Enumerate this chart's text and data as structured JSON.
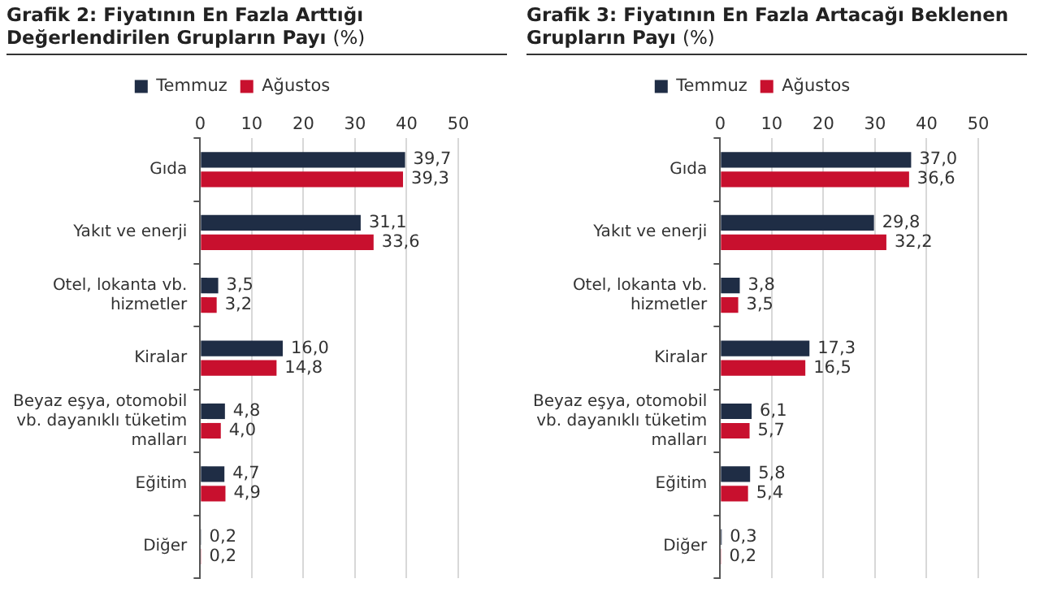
{
  "chart_data": [
    {
      "type": "bar",
      "orientation": "horizontal",
      "title": "Grafik 2: Fiyatının En Fazla Arttığı Değerlendirilen Grupların Payı",
      "subtitle": "(%)",
      "categories": [
        "Gıda",
        "Yakıt ve enerji",
        "Otel, lokanta vb. hizmetler",
        "Kiralar",
        "Beyaz eşya, otomobil vb. dayanıklı tüketim malları",
        "Eğitim",
        "Diğer"
      ],
      "series": [
        {
          "name": "Temmuz",
          "color": "#1f2d45",
          "values": [
            39.7,
            31.1,
            3.5,
            16.0,
            4.8,
            4.7,
            0.2
          ],
          "value_labels": [
            "39,7",
            "31,1",
            "3,5",
            "16,0",
            "4,8",
            "4,7",
            "0,2"
          ]
        },
        {
          "name": "Ağustos",
          "color": "#c8102e",
          "values": [
            39.3,
            33.6,
            3.2,
            14.8,
            4.0,
            4.9,
            0.2
          ],
          "value_labels": [
            "39,3",
            "33,6",
            "3,2",
            "14,8",
            "4,0",
            "4,9",
            "0,2"
          ]
        }
      ],
      "xlim": [
        0,
        50
      ],
      "xticks": [
        0,
        10,
        20,
        30,
        40,
        50
      ],
      "grid": "x",
      "legend": "top"
    },
    {
      "type": "bar",
      "orientation": "horizontal",
      "title": "Grafik 3: Fiyatının En Fazla Artacağı Beklenen Grupların Payı",
      "subtitle": "(%)",
      "categories": [
        "Gıda",
        "Yakıt ve enerji",
        "Otel, lokanta vb. hizmetler",
        "Kiralar",
        "Beyaz eşya, otomobil vb. dayanıklı tüketim malları",
        "Eğitim",
        "Diğer"
      ],
      "series": [
        {
          "name": "Temmuz",
          "color": "#1f2d45",
          "values": [
            37.0,
            29.8,
            3.8,
            17.3,
            6.1,
            5.8,
            0.3
          ],
          "value_labels": [
            "37,0",
            "29,8",
            "3,8",
            "17,3",
            "6,1",
            "5,8",
            "0,3"
          ]
        },
        {
          "name": "Ağustos",
          "color": "#c8102e",
          "values": [
            36.6,
            32.2,
            3.5,
            16.5,
            5.7,
            5.4,
            0.2
          ],
          "value_labels": [
            "36,6",
            "32,2",
            "3,5",
            "16,5",
            "5,7",
            "5,4",
            "0,2"
          ]
        }
      ],
      "xlim": [
        0,
        50
      ],
      "xticks": [
        0,
        10,
        20,
        30,
        40,
        50
      ],
      "grid": "x",
      "legend": "top"
    }
  ]
}
